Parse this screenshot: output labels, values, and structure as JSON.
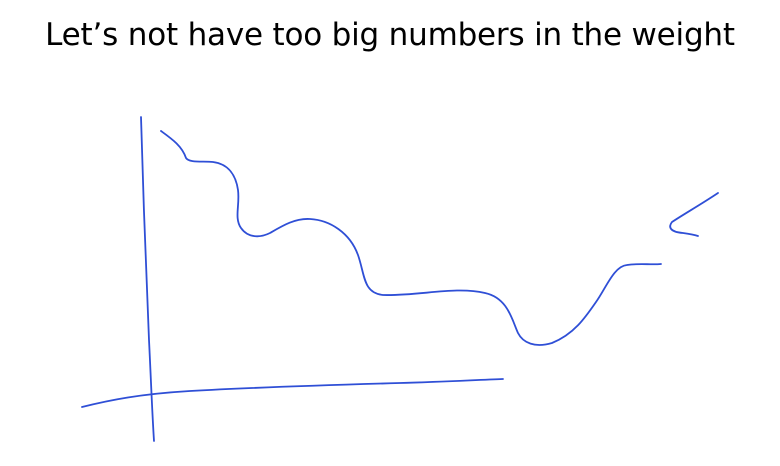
{
  "slide": {
    "title": "Let’s not have too big numbers in the weight"
  },
  "sketch": {
    "ink_color": "#2f4fd6",
    "strokes": [
      "y-axis",
      "x-axis",
      "curve",
      "arrow"
    ]
  }
}
